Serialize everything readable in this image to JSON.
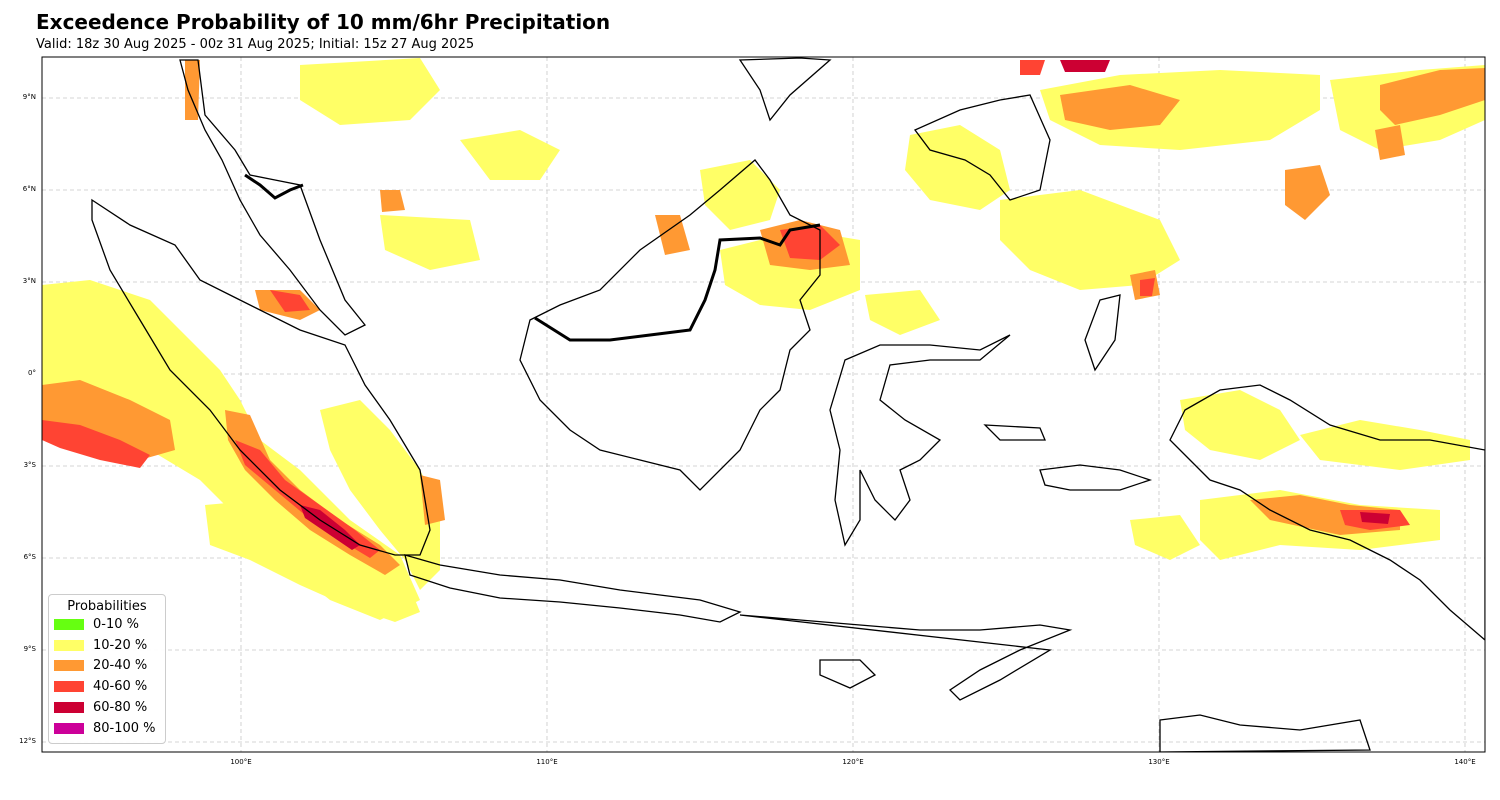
{
  "title": "Exceedence Probability of 10 mm/6hr Precipitation",
  "subtitle": "Valid: 18z 30 Aug 2025 - 00z 31 Aug 2025; Initial: 15z 27 Aug 2025",
  "map": {
    "lon_range": [
      93.5,
      140.7
    ],
    "lat_range": [
      -12.6,
      10.2
    ],
    "gridlines": true,
    "lat_ticks": [
      "9°N",
      "6°N",
      "3°N",
      "0°",
      "3°S",
      "6°S",
      "9°S",
      "12°S"
    ],
    "lon_ticks": [
      "100°E",
      "110°E",
      "120°E",
      "130°E",
      "140°E"
    ]
  },
  "legend": {
    "title": "Probabilities",
    "items": [
      {
        "label": "0-10 %",
        "color": "#66ff11"
      },
      {
        "label": "10-20 %",
        "color": "#ffff66"
      },
      {
        "label": "20-40 %",
        "color": "#ff9933"
      },
      {
        "label": "40-60 %",
        "color": "#ff4433"
      },
      {
        "label": "60-80 %",
        "color": "#cc0033"
      },
      {
        "label": "80-100 %",
        "color": "#cc0099"
      }
    ]
  }
}
